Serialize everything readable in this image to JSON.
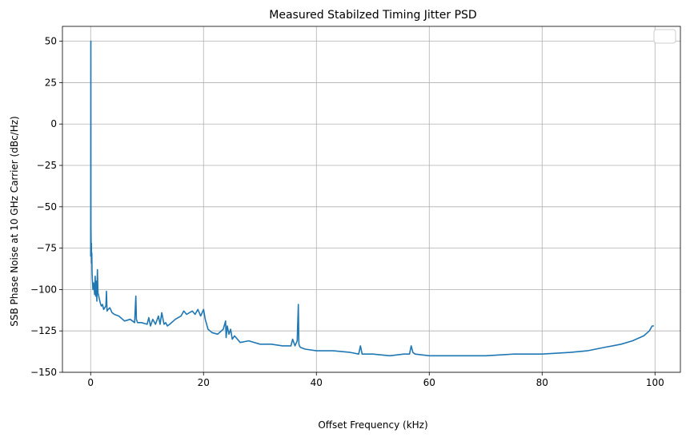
{
  "chart_data": {
    "type": "line",
    "title": "Measured Stabilzed Timing Jitter PSD",
    "xlabel": "Offset Frequency (kHz)",
    "ylabel": "SSB Phase Noise at 10 GHz Carrier (dBc/Hz)",
    "xlim": [
      -5,
      104.5
    ],
    "ylim": [
      -150,
      59
    ],
    "xticks": [
      0,
      20,
      40,
      60,
      80,
      100
    ],
    "yticks": [
      -150,
      -125,
      -100,
      -75,
      -50,
      -25,
      0,
      25,
      50
    ],
    "xtick_labels": [
      "0",
      "20",
      "40",
      "60",
      "80",
      "100"
    ],
    "ytick_labels": [
      "−150",
      "−125",
      "−100",
      "−75",
      "−50",
      "−25",
      "0",
      "25",
      "50"
    ],
    "grid": true,
    "legend": "top-right (empty)",
    "series": [
      {
        "color": "#1f77b4",
        "x": [
          0.0,
          0.03,
          0.05,
          0.08,
          0.1,
          0.13,
          0.16,
          0.2,
          0.25,
          0.3,
          0.4,
          0.5,
          0.6,
          0.7,
          0.8,
          0.9,
          1.0,
          1.1,
          1.2,
          1.3,
          1.5,
          1.7,
          1.9,
          2.1,
          2.3,
          2.5,
          2.7,
          2.8,
          2.9,
          3.1,
          3.4,
          3.8,
          4.2,
          5.0,
          6.0,
          7.0,
          7.8,
          8.0,
          8.1,
          8.3,
          9.0,
          10.0,
          10.3,
          10.6,
          11.0,
          11.5,
          12.0,
          12.3,
          12.6,
          13.0,
          13.3,
          13.6,
          14.0,
          15.0,
          16.0,
          16.5,
          17.0,
          17.5,
          18.0,
          18.5,
          19.0,
          19.5,
          20.0,
          20.3,
          20.8,
          21.5,
          22.5,
          23.5,
          23.9,
          24.0,
          24.2,
          24.5,
          24.8,
          25.1,
          25.5,
          26.5,
          28.0,
          30.0,
          32.0,
          34.0,
          35.5,
          35.8,
          36.2,
          36.6,
          36.8,
          36.9,
          37.0,
          37.2,
          38.0,
          40.0,
          43.0,
          46.0,
          47.5,
          47.8,
          48.1,
          50.0,
          53.0,
          55.5,
          56.5,
          56.8,
          57.1,
          57.5,
          60.0,
          65.0,
          70.0,
          75.0,
          80.0,
          85.0,
          88.0,
          91.0,
          94.0,
          96.0,
          98.0,
          99.0,
          99.5,
          99.8
        ],
        "y": [
          -80,
          50,
          -62,
          -70,
          -80,
          -72,
          -84,
          -78,
          -90,
          -94,
          -100,
          -96,
          -98,
          -103,
          -92,
          -104,
          -95,
          -107,
          -88,
          -102,
          -105,
          -108,
          -110,
          -109,
          -112,
          -111,
          -110,
          -101,
          -113,
          -112,
          -111,
          -114,
          -115,
          -116,
          -119,
          -118,
          -120,
          -104,
          -118,
          -120,
          -120,
          -121,
          -117,
          -122,
          -118,
          -121,
          -116,
          -121,
          -114,
          -121,
          -120,
          -122,
          -121,
          -118,
          -116,
          -113,
          -115,
          -114,
          -113,
          -115,
          -112,
          -116,
          -112,
          -118,
          -124,
          -126,
          -127,
          -124,
          -119,
          -129,
          -122,
          -127,
          -124,
          -130,
          -128,
          -132,
          -131,
          -133,
          -133,
          -134,
          -134,
          -130,
          -134,
          -131,
          -109,
          -133,
          -134,
          -135,
          -136,
          -137,
          -137,
          -138,
          -139,
          -134,
          -139,
          -139,
          -140,
          -139,
          -139,
          -134,
          -138,
          -139,
          -140,
          -140,
          -140,
          -139,
          -139,
          -138,
          -137,
          -135,
          -133,
          -131,
          -128,
          -125,
          -122,
          -122
        ]
      }
    ]
  }
}
